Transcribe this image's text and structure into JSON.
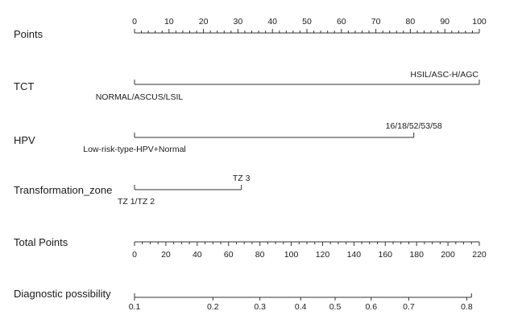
{
  "chart_data": {
    "type": "nomogram",
    "title": "",
    "rows": [
      {
        "label": "Points",
        "kind": "scale",
        "min": 0,
        "max": 100,
        "major_ticks": [
          0,
          10,
          20,
          30,
          40,
          50,
          60,
          70,
          80,
          90,
          100
        ],
        "minor_step": 2,
        "labels_above": true
      },
      {
        "label": "TCT",
        "kind": "variable",
        "categories": [
          {
            "name": "NORMAL/ASCUS/LSIL",
            "points": 0,
            "label_side": "below"
          },
          {
            "name": "HSIL/ASC-H/AGC",
            "points": 100,
            "label_side": "above"
          }
        ]
      },
      {
        "label": "HPV",
        "kind": "variable",
        "categories": [
          {
            "name": "Low-risk-type-HPV+Normal",
            "points": 0,
            "label_side": "below"
          },
          {
            "name": "16/18/52/53/58",
            "points": 81,
            "label_side": "above"
          }
        ]
      },
      {
        "label": "Transformation_zone",
        "kind": "variable",
        "categories": [
          {
            "name": "TZ 1/TZ 2",
            "points": 0,
            "label_side": "below"
          },
          {
            "name": "TZ 3",
            "points": 31,
            "label_side": "above"
          }
        ]
      },
      {
        "label": "Total Points",
        "kind": "scale",
        "min": 0,
        "max": 220,
        "major_ticks": [
          0,
          20,
          40,
          60,
          80,
          100,
          120,
          140,
          160,
          180,
          200,
          220
        ],
        "minor_step": 5,
        "labels_above": false
      },
      {
        "label": "Diagnostic possibility",
        "kind": "probability",
        "total_points_range": [
          0,
          215
        ],
        "ticks": [
          {
            "label": "0.1",
            "total_points": 0
          },
          {
            "label": "0.2",
            "total_points": 50
          },
          {
            "label": "0.3",
            "total_points": 80
          },
          {
            "label": "0.4",
            "total_points": 106
          },
          {
            "label": "0.5",
            "total_points": 128
          },
          {
            "label": "0.6",
            "total_points": 151
          },
          {
            "label": "0.7",
            "total_points": 175
          },
          {
            "label": "0.8",
            "total_points": 212
          }
        ]
      }
    ]
  }
}
